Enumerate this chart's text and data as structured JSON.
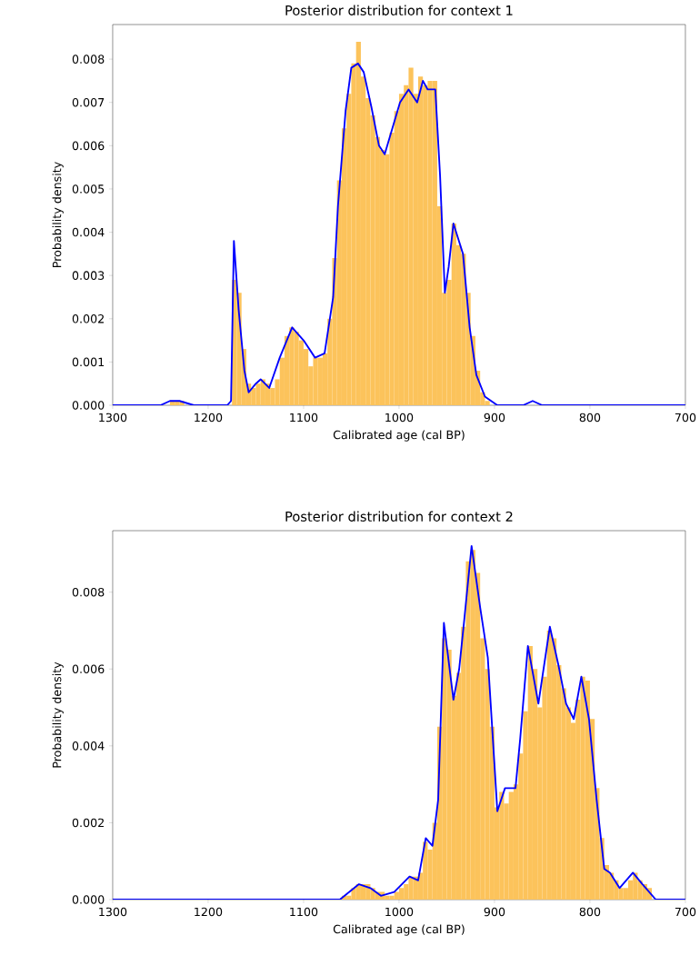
{
  "chart_data": [
    {
      "type": "histogram",
      "title": "Posterior distribution for context 1",
      "xlabel": "Calibrated age (cal BP)",
      "ylabel": "Probability density",
      "xlim": [
        1300,
        700
      ],
      "ylim": [
        0,
        0.0088
      ],
      "xticks": [
        1300,
        1200,
        1100,
        1000,
        900,
        800,
        700
      ],
      "yticks": [
        {
          "value": 0,
          "label": "0.000"
        },
        {
          "value": 0.001,
          "label": "0.001"
        },
        {
          "value": 0.002,
          "label": "0.002"
        },
        {
          "value": 0.003,
          "label": "0.003"
        },
        {
          "value": 0.004,
          "label": "0.004"
        },
        {
          "value": 0.005,
          "label": "0.005"
        },
        {
          "value": 0.006,
          "label": "0.006"
        },
        {
          "value": 0.007,
          "label": "0.007"
        },
        {
          "value": 0.008,
          "label": "0.008"
        }
      ],
      "series": [
        {
          "color": "#fcc35b",
          "bins": [
            905,
            910,
            915,
            920,
            925,
            930,
            935,
            940,
            945,
            950,
            955,
            960,
            965,
            970,
            975,
            980,
            985,
            990,
            995,
            1000,
            1005,
            1010,
            1015,
            1020,
            1025,
            1030,
            1035,
            1040,
            1045,
            1050,
            1055,
            1060,
            1065,
            1070,
            1075,
            1080,
            1085,
            1090,
            1095,
            1100,
            1105,
            1110,
            1115,
            1120,
            1125,
            1130,
            1135,
            1140,
            1145,
            1150,
            1155,
            1160,
            1165,
            1170,
            1175,
            1180,
            1185,
            1190,
            1195,
            1200,
            1205,
            1210,
            1215,
            1220,
            1225,
            1230,
            1235,
            1240,
            1245
          ],
          "values": [
            0.0001,
            0.0003,
            0.0008,
            0.0016,
            0.0026,
            0.0035,
            0.0037,
            0.0042,
            0.0029,
            0.0026,
            0.0046,
            0.0075,
            0.0075,
            0.0074,
            0.0076,
            0.0072,
            0.0078,
            0.0074,
            0.0072,
            0.0068,
            0.0063,
            0.0058,
            0.0059,
            0.0062,
            0.0067,
            0.0071,
            0.0076,
            0.0084,
            0.0079,
            0.0072,
            0.0064,
            0.0052,
            0.0034,
            0.002,
            0.0012,
            0.0011,
            0.0011,
            0.0009,
            0.0013,
            0.0015,
            0.0017,
            0.0018,
            0.0016,
            0.0011,
            0.0006,
            0.0004,
            0.0005,
            0.0006,
            0.0005,
            0.0004,
            0.0005,
            0.0013,
            0.0026,
            0.0029,
            0,
            0,
            0,
            0,
            0,
            0,
            0,
            0,
            0,
            0,
            0.0001,
            0.0001,
            0.0001,
            0
          ]
        },
        {
          "type": "line",
          "color": "#0000ff",
          "x": [
            1300,
            1260,
            1250,
            1240,
            1230,
            1215,
            1200,
            1180,
            1176,
            1173,
            1168,
            1162,
            1157.5,
            1150,
            1145,
            1136,
            1125,
            1112,
            1100,
            1088,
            1078,
            1069,
            1064,
            1056,
            1050,
            1043,
            1037,
            1029,
            1021,
            1015,
            1007,
            999,
            990,
            981,
            975,
            970,
            962,
            957,
            952,
            948,
            943,
            933,
            926,
            919,
            910,
            897,
            870,
            860,
            850,
            800,
            700
          ],
          "values": [
            0,
            0,
            0,
            0.0001,
            0.0001,
            0,
            0,
            0,
            0.0001,
            0.0038,
            0.0022,
            0.0008,
            0.0003,
            0.0005,
            0.0006,
            0.0004,
            0.0011,
            0.0018,
            0.0015,
            0.0011,
            0.0012,
            0.0025,
            0.0046,
            0.0068,
            0.0078,
            0.0079,
            0.0077,
            0.0069,
            0.006,
            0.0058,
            0.0064,
            0.007,
            0.0073,
            0.007,
            0.0075,
            0.0073,
            0.0073,
            0.0053,
            0.0026,
            0.0032,
            0.0042,
            0.0035,
            0.0018,
            0.0007,
            0.0002,
            0,
            0,
            0.0001,
            0,
            0,
            0
          ]
        }
      ]
    },
    {
      "type": "histogram",
      "title": "Posterior distribution for context 2",
      "xlabel": "Calibrated age (cal BP)",
      "ylabel": "Probability density",
      "xlim": [
        1300,
        700
      ],
      "ylim": [
        0,
        0.0096
      ],
      "xticks": [
        1300,
        1200,
        1100,
        1000,
        900,
        800,
        700
      ],
      "yticks": [
        {
          "value": 0,
          "label": "0.000"
        },
        {
          "value": 0.002,
          "label": "0.002"
        },
        {
          "value": 0.004,
          "label": "0.004"
        },
        {
          "value": 0.006,
          "label": "0.006"
        },
        {
          "value": 0.008,
          "label": "0.008"
        }
      ],
      "series": [
        {
          "color": "#fcc35b",
          "bins": [
            730,
            735,
            740,
            745,
            750,
            755,
            760,
            765,
            770,
            775,
            780,
            785,
            790,
            795,
            800,
            805,
            810,
            815,
            820,
            825,
            830,
            835,
            840,
            845,
            850,
            855,
            860,
            865,
            870,
            875,
            880,
            885,
            890,
            895,
            900,
            905,
            910,
            915,
            920,
            925,
            930,
            935,
            940,
            945,
            950,
            955,
            960,
            965,
            970,
            975,
            980,
            985,
            990,
            995,
            1000,
            1005,
            1010,
            1015,
            1020,
            1025,
            1030,
            1035,
            1040,
            1045,
            1050,
            1055,
            1060
          ],
          "values": [
            null,
            0.0003,
            0.0004,
            0.0005,
            0.0007,
            0.0005,
            0.0003,
            0.0003,
            0.0005,
            0.0007,
            0.0009,
            0.0016,
            0.0029,
            0.0047,
            0.0057,
            0.0058,
            0.0052,
            0.0046,
            0.005,
            0.0055,
            0.0061,
            0.0068,
            0.007,
            0.0058,
            0.005,
            0.006,
            0.0066,
            0.0049,
            0.0038,
            0.003,
            0.0028,
            0.0025,
            0.0028,
            0.0024,
            0.0045,
            0.006,
            0.0068,
            0.0085,
            0.0091,
            0.0088,
            0.0071,
            0.0059,
            0.0053,
            0.0065,
            0.0068,
            0.0045,
            0.002,
            0.0013,
            0.0015,
            0.0007,
            0.0006,
            0.0006,
            0.0004,
            0.0003,
            0.0002,
            0.0001,
            0.0001,
            0.0002,
            0.0002,
            0.0003,
            0.0004,
            0.0004,
            0.0004,
            0.0003,
            0.0001,
            0.0001
          ]
        },
        {
          "type": "line",
          "color": "#0000ff",
          "x": [
            1300,
            1070,
            1062,
            1052,
            1042,
            1030,
            1019,
            1005,
            989,
            980,
            972,
            965,
            959,
            953,
            943,
            937,
            932,
            924,
            915,
            907,
            897,
            889,
            878,
            873,
            865,
            854,
            842,
            833,
            825,
            817,
            809,
            801,
            793,
            785,
            779,
            769,
            755,
            745,
            731,
            720,
            700
          ],
          "values": [
            0,
            0,
            0,
            0.0002,
            0.0004,
            0.0003,
            0.0001,
            0.0002,
            0.0006,
            0.0005,
            0.0016,
            0.0014,
            0.0026,
            0.0072,
            0.0052,
            0.006,
            0.0072,
            0.0092,
            0.0076,
            0.0063,
            0.0023,
            0.0029,
            0.0029,
            0.0042,
            0.0066,
            0.0051,
            0.0071,
            0.0061,
            0.0051,
            0.0047,
            0.0058,
            0.0047,
            0.0026,
            0.0008,
            0.0007,
            0.0003,
            0.0007,
            0.0004,
            0,
            0,
            0
          ]
        }
      ]
    }
  ]
}
